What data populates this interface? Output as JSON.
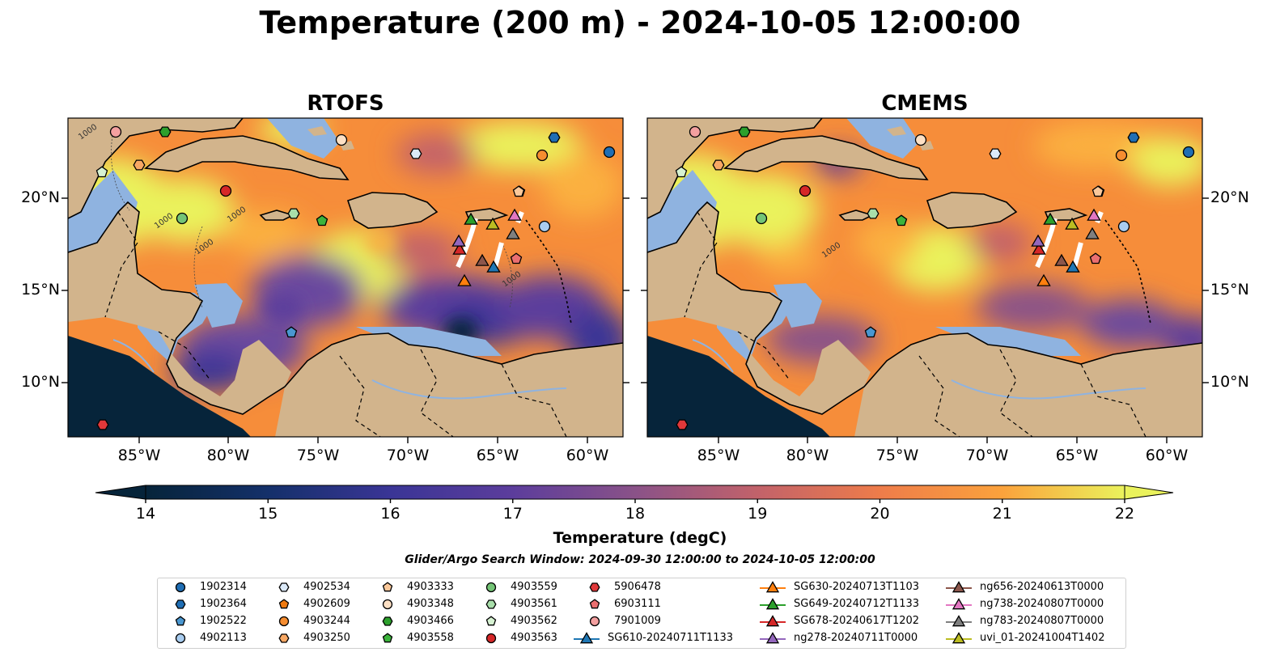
{
  "title": "Temperature (200 m) - 2024-10-05 12:00:00",
  "panels": [
    {
      "title": "RTOFS"
    },
    {
      "title": "CMEMS"
    }
  ],
  "axes": {
    "x_ticks": [
      "85°W",
      "80°W",
      "75°W",
      "70°W",
      "65°W",
      "60°W"
    ],
    "y_ticks": [
      "20°N",
      "15°N",
      "10°N"
    ]
  },
  "contour_labels": [
    "1000",
    "1000",
    "1000",
    "1000",
    "1000",
    "1000"
  ],
  "colorbar": {
    "label": "Temperature (degC)",
    "ticks": [
      "14",
      "15",
      "16",
      "17",
      "18",
      "19",
      "20",
      "21",
      "22"
    ],
    "min": 14,
    "max": 22,
    "extend": "both"
  },
  "search_window": "Glider/Argo Search Window: 2024-09-30 12:00:00 to 2024-10-05 12:00:00",
  "colors": {
    "land": "#d2b48c",
    "shelf": "#8fb3e0",
    "ocean_cold": "#06243a",
    "ocean_warm": "#e8f45a"
  },
  "legend": [
    {
      "label": "1902314",
      "marker": "circle",
      "color": "#1f6eb4"
    },
    {
      "label": "1902364",
      "marker": "hexagon",
      "color": "#1f6eb4"
    },
    {
      "label": "1902522",
      "marker": "pentagon",
      "color": "#4a97d0"
    },
    {
      "label": "4902113",
      "marker": "circle",
      "color": "#a9cdf0"
    },
    {
      "label": "4902534",
      "marker": "hexagon",
      "color": "#dbe9f8"
    },
    {
      "label": "4902609",
      "marker": "pentagon",
      "color": "#f07a10"
    },
    {
      "label": "4903244",
      "marker": "circle",
      "color": "#f68d30"
    },
    {
      "label": "4903250",
      "marker": "hexagon",
      "color": "#f8a864"
    },
    {
      "label": "4903333",
      "marker": "pentagon",
      "color": "#fbc89a"
    },
    {
      "label": "4903348",
      "marker": "circle",
      "color": "#fde0c4"
    },
    {
      "label": "4903466",
      "marker": "hexagon",
      "color": "#2ca02c"
    },
    {
      "label": "4903558",
      "marker": "pentagon",
      "color": "#3cb43c"
    },
    {
      "label": "4903559",
      "marker": "circle",
      "color": "#74c476"
    },
    {
      "label": "4903561",
      "marker": "hexagon",
      "color": "#a8deaa"
    },
    {
      "label": "4903562",
      "marker": "pentagon",
      "color": "#d6f2d2"
    },
    {
      "label": "4903563",
      "marker": "circle",
      "color": "#d62728"
    },
    {
      "label": "5906478",
      "marker": "hexagon",
      "color": "#e0383a"
    },
    {
      "label": "6903111",
      "marker": "pentagon",
      "color": "#ea6f70"
    },
    {
      "label": "7901009",
      "marker": "circle",
      "color": "#f4a0a0"
    },
    {
      "label": "SG610-20240711T1133",
      "marker": "triangle-line",
      "color": "#1f77b4"
    },
    {
      "label": "SG630-20240713T1103",
      "marker": "triangle-line",
      "color": "#ff7f0e"
    },
    {
      "label": "SG649-20240712T1133",
      "marker": "triangle-line",
      "color": "#2ca02c"
    },
    {
      "label": "SG678-20240617T1202",
      "marker": "triangle-line",
      "color": "#d62728"
    },
    {
      "label": "ng278-20240711T0000",
      "marker": "triangle-line",
      "color": "#9467bd"
    },
    {
      "label": "ng656-20240613T0000",
      "marker": "triangle-line",
      "color": "#8c564b"
    },
    {
      "label": "ng738-20240807T0000",
      "marker": "triangle-line",
      "color": "#e377c2"
    },
    {
      "label": "ng783-20240807T0000",
      "marker": "triangle-line",
      "color": "#7f7f7f"
    },
    {
      "label": "uvi_01-20241004T1402",
      "marker": "triangle-line",
      "color": "#bcbd22"
    }
  ]
}
